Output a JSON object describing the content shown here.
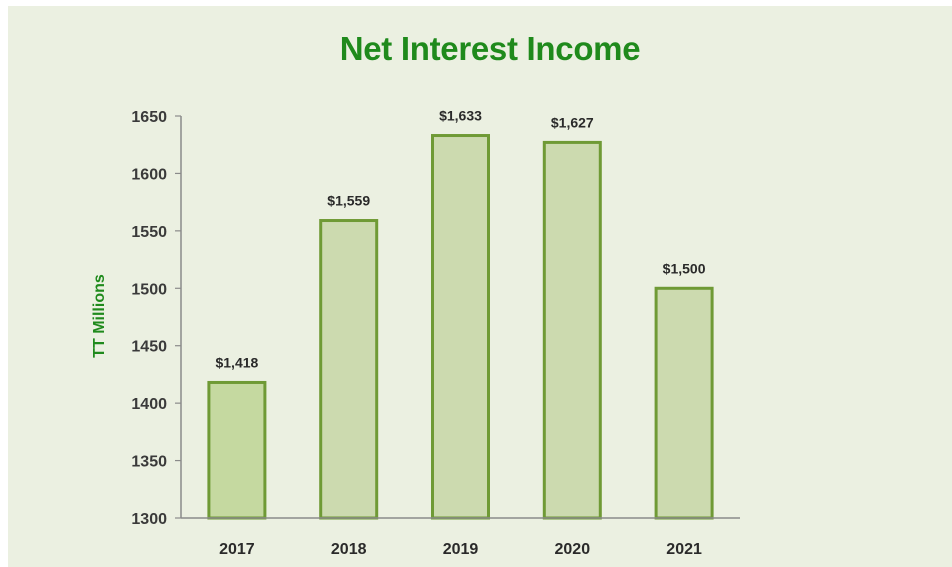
{
  "chart_data": {
    "type": "bar",
    "title": "Net Interest Income",
    "ylabel": "TT Millions",
    "xlabel": "",
    "categories": [
      "2017",
      "2018",
      "2019",
      "2020",
      "2021"
    ],
    "values": [
      1418,
      1559,
      1633,
      1627,
      1500
    ],
    "data_labels": [
      "$1,418",
      "$1,559",
      "$1,633",
      "$1,627",
      "$1,500"
    ],
    "ylim": [
      1300,
      1650
    ],
    "yticks": [
      1300,
      1350,
      1400,
      1450,
      1500,
      1550,
      1600,
      1650
    ],
    "grid": false,
    "legend": "none",
    "colors": {
      "background": "#ebf0e1",
      "title": "#1f8a1c",
      "bar_first": "#c5d9a0",
      "bar_fill": "#ccdaaf",
      "bar_stroke": "#6f9a35",
      "axis": "#8a8a8a"
    }
  }
}
